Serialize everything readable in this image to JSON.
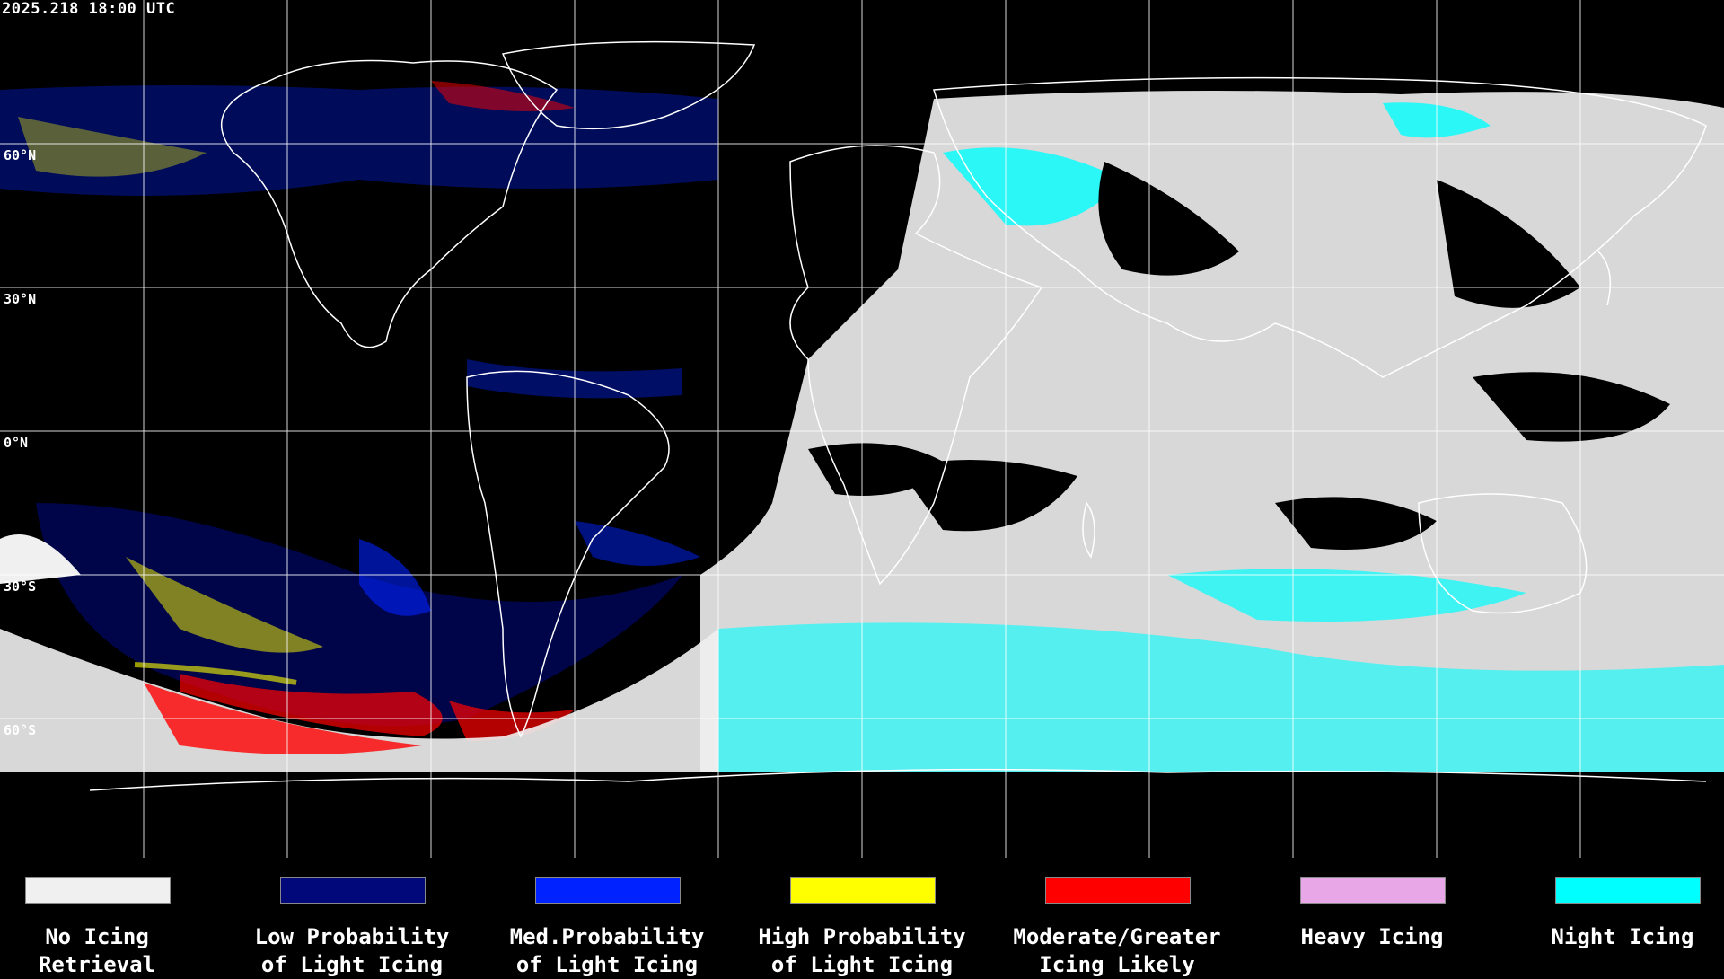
{
  "timestamp": "2025.218 18:00 UTC",
  "latitude_labels": [
    "60°N",
    "30°N",
    "0°N",
    "30°S",
    "60°S"
  ],
  "colors": {
    "background": "#000000",
    "no_icing_retrieval": "#f0f0f0",
    "low_probability": "#00087a",
    "med_probability": "#0022ff",
    "high_probability": "#ffff00",
    "moderate_greater": "#ff0000",
    "heavy_icing": "#e8a8e8",
    "night_icing": "#00ffff",
    "coastline": "#ffffff",
    "grid": "#ffffff"
  },
  "legend": [
    {
      "label": "No Icing\nRetrieval",
      "color": "#f0f0f0"
    },
    {
      "label": "Low Probability\nof Light Icing",
      "color": "#00087a"
    },
    {
      "label": "Med.Probability\nof Light Icing",
      "color": "#0022ff"
    },
    {
      "label": "High Probability\nof Light Icing",
      "color": "#ffff00"
    },
    {
      "label": "Moderate/Greater\nIcing Likely",
      "color": "#ff0000"
    },
    {
      "label": "Heavy Icing",
      "color": "#e8a8e8"
    },
    {
      "label": "Night Icing",
      "color": "#00ffff"
    }
  ]
}
